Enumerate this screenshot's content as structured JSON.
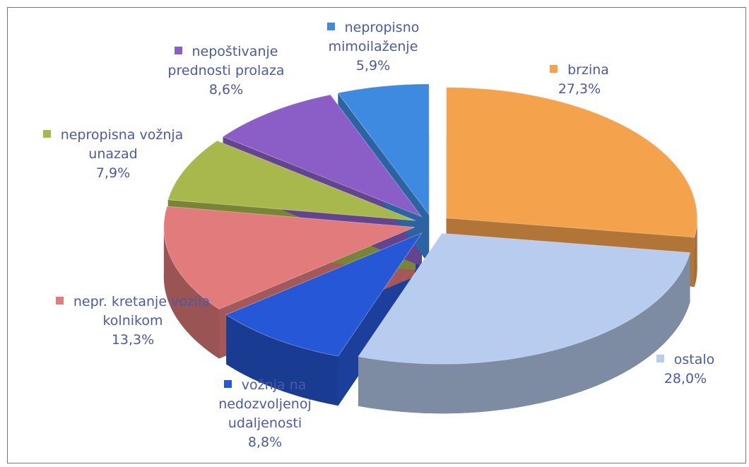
{
  "chart_data": {
    "type": "pie",
    "categories": [
      "brzina",
      "ostalo",
      "vožnja na nedozvoljenoj udaljenosti",
      "nepr. kretanje vozila kolnikom",
      "nepropisna vožnja unazad",
      "nepoštivanje prednosti prolaza",
      "nepropisno mimoilaženje"
    ],
    "values": [
      27.3,
      28.0,
      8.8,
      13.3,
      7.9,
      8.6,
      5.9
    ],
    "value_labels": [
      "27,3%",
      "28,0%",
      "8,8%",
      "13,3%",
      "7,9%",
      "8,6%",
      "5,9%"
    ],
    "colors": [
      "#f4a24c",
      "#b8ccef",
      "#2557d6",
      "#e27b7b",
      "#a9b84c",
      "#8a5ec6",
      "#3d8ae0"
    ],
    "three_d": true,
    "exploded": true
  }
}
